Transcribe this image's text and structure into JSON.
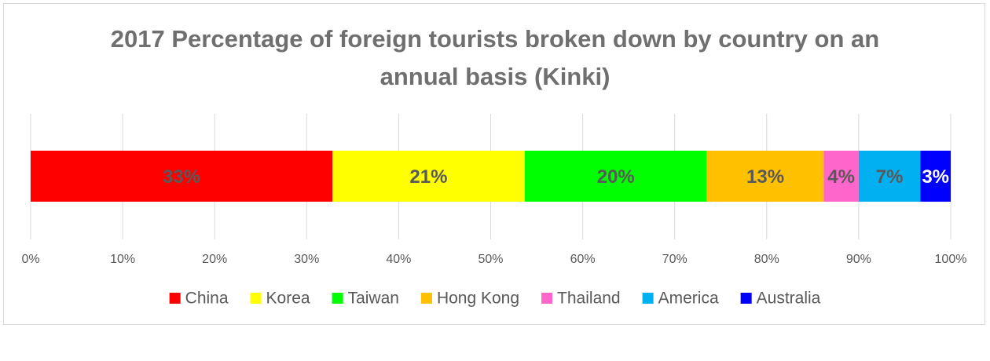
{
  "chart_data": {
    "type": "bar",
    "orientation": "horizontal",
    "stacked": true,
    "title": "2017 Percentage of foreign tourists broken down by country on an annual basis (Kinki)",
    "series": [
      {
        "name": "China",
        "color": "#ff0000",
        "label_color": "#595959",
        "values": [
          32.8
        ],
        "value_labels": [
          "33%"
        ]
      },
      {
        "name": "Korea",
        "color": "#ffff00",
        "label_color": "#595959",
        "values": [
          20.9
        ],
        "value_labels": [
          "21%"
        ]
      },
      {
        "name": "Taiwan",
        "color": "#00ff00",
        "label_color": "#595959",
        "values": [
          19.8
        ],
        "value_labels": [
          "20%"
        ]
      },
      {
        "name": "Hong Kong",
        "color": "#ffc000",
        "label_color": "#595959",
        "values": [
          12.7
        ],
        "value_labels": [
          "13%"
        ]
      },
      {
        "name": "Thailand",
        "color": "#ff66cc",
        "label_color": "#595959",
        "values": [
          3.8
        ],
        "value_labels": [
          "4%"
        ]
      },
      {
        "name": "America",
        "color": "#00b0f0",
        "label_color": "#595959",
        "values": [
          6.7
        ],
        "value_labels": [
          "7%"
        ]
      },
      {
        "name": "Australia",
        "color": "#0000ff",
        "label_color": "#ffffff",
        "values": [
          3.3
        ],
        "value_labels": [
          "3%"
        ]
      }
    ],
    "xlim": [
      0,
      100
    ],
    "xticks": [
      {
        "value": 0,
        "label": "0%"
      },
      {
        "value": 10,
        "label": "10%"
      },
      {
        "value": 20,
        "label": "20%"
      },
      {
        "value": 30,
        "label": "30%"
      },
      {
        "value": 40,
        "label": "40%"
      },
      {
        "value": 50,
        "label": "50%"
      },
      {
        "value": 60,
        "label": "60%"
      },
      {
        "value": 70,
        "label": "70%"
      },
      {
        "value": 80,
        "label": "80%"
      },
      {
        "value": 90,
        "label": "90%"
      },
      {
        "value": 100,
        "label": "100%"
      }
    ],
    "grid": true,
    "legend": "bottom"
  }
}
